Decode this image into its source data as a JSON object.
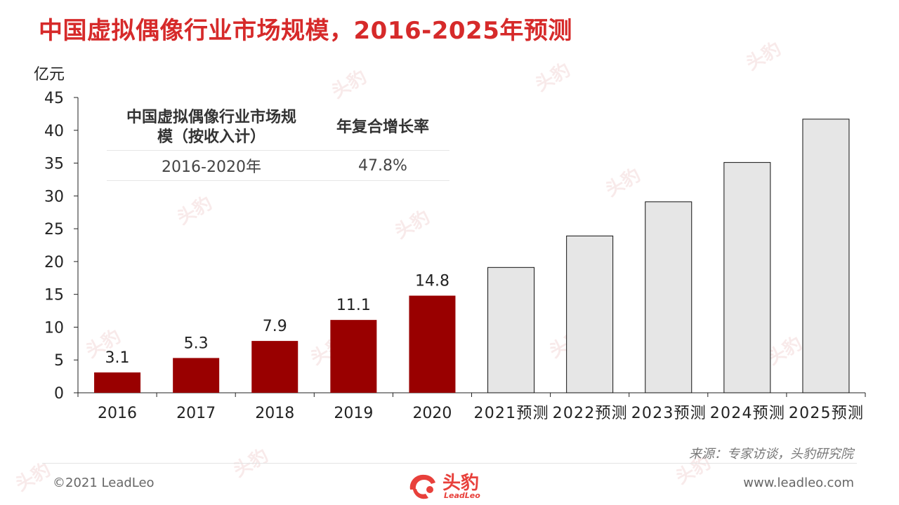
{
  "title": "中国虚拟偶像行业市场规模，2016-2025年预测",
  "unit_label": "亿元",
  "table": {
    "col1_header": "中国虚拟偶像行业市场规模（按收入计）",
    "col2_header": "年复合增长率",
    "period": "2016-2020年",
    "rate": "47.8%"
  },
  "source": "来源：专家访谈，头豹研究院",
  "copyright": "©2021 LeadLeo",
  "website": "www.leadleo.com",
  "logo": {
    "text": "头豹",
    "sub": "LeadLeo"
  },
  "watermark_text": "头豹",
  "colors": {
    "title": "#d62a2a",
    "actual_bar": "#990000",
    "forecast_bar": "#e6e6e6",
    "forecast_stroke": "#111111"
  },
  "chart_data": {
    "type": "bar",
    "categories": [
      "2016",
      "2017",
      "2018",
      "2019",
      "2020",
      "2021预测",
      "2022预测",
      "2023预测",
      "2024预测",
      "2025预测"
    ],
    "values": [
      3.1,
      5.3,
      7.9,
      11.1,
      14.8,
      19.1,
      23.9,
      29.1,
      35.1,
      41.7
    ],
    "data_labels": [
      "3.1",
      "5.3",
      "7.9",
      "11.1",
      "14.8",
      "",
      "",
      "",
      "",
      ""
    ],
    "forecast": [
      false,
      false,
      false,
      false,
      false,
      true,
      true,
      true,
      true,
      true
    ],
    "ylabel": "亿元",
    "ylim": [
      0,
      45
    ],
    "yticks": [
      0,
      5,
      10,
      15,
      20,
      25,
      30,
      35,
      40,
      45
    ],
    "grid": false
  }
}
